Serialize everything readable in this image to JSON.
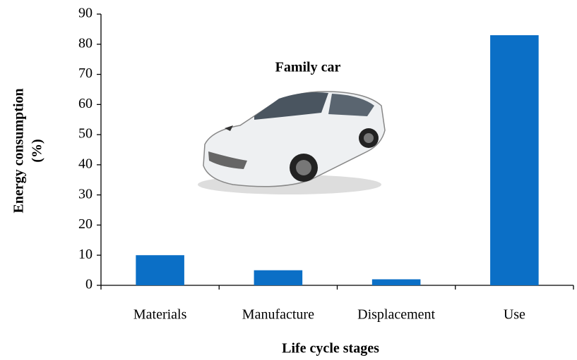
{
  "chart_data": {
    "type": "bar",
    "annotation": "Family car",
    "x_label": "Life cycle stages",
    "y_label": [
      "Energy consumption",
      "(%)"
    ],
    "categories": [
      "Materials",
      "Manufacture",
      "Displacement",
      "Use"
    ],
    "values": [
      10,
      5,
      2,
      83
    ],
    "color": "#0b6fc6",
    "ylim": [
      0,
      90
    ],
    "yticks": [
      0,
      10,
      20,
      30,
      40,
      50,
      60,
      70,
      80,
      90
    ],
    "grid": false
  }
}
